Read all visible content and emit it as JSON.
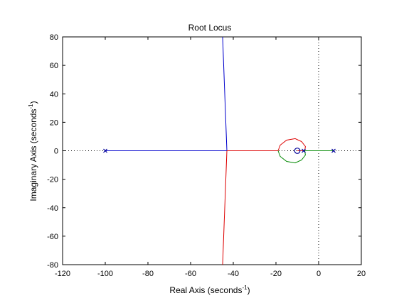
{
  "chart_data": {
    "type": "line",
    "title": "Root Locus",
    "xlabel": {
      "main": "Real Axis (seconds",
      "sup": "-1",
      "close": ")"
    },
    "ylabel": {
      "main": "Imaginary Axis (seconds",
      "sup": "-1",
      "close": ")"
    },
    "xlim": [
      -120,
      20
    ],
    "ylim": [
      -80,
      80
    ],
    "xticks": [
      -120,
      -100,
      -80,
      -60,
      -40,
      -20,
      0,
      20
    ],
    "yticks": [
      -80,
      -60,
      -40,
      -20,
      0,
      20,
      40,
      60,
      80
    ],
    "grid": false,
    "colors": {
      "blue": "#0000cc",
      "red": "#dd0000",
      "green": "#008800",
      "marker": "#000099",
      "axis": "#000000"
    },
    "series": [
      {
        "color": "blue",
        "x": [
          -100,
          -43
        ],
        "y": [
          0,
          0
        ]
      },
      {
        "color": "blue",
        "x": [
          -43,
          -44,
          -45
        ],
        "y": [
          0,
          40,
          80
        ]
      },
      {
        "color": "red",
        "x": [
          -43,
          -44,
          -45
        ],
        "y": [
          0,
          -40,
          -80
        ]
      },
      {
        "color": "red",
        "x": [
          -43,
          -19
        ],
        "y": [
          0,
          0
        ]
      },
      {
        "color": "red",
        "x": [
          -19,
          -18,
          -15,
          -11,
          -8,
          -6.2,
          -6.5
        ],
        "y": [
          0,
          4,
          7.5,
          8.5,
          6.5,
          3,
          0
        ]
      },
      {
        "color": "green",
        "x": [
          -19,
          -18,
          -15,
          -11,
          -8,
          -6.2,
          -6.5
        ],
        "y": [
          0,
          -4,
          -7.5,
          -8.5,
          -6.5,
          -3,
          0
        ]
      },
      {
        "color": "red",
        "x": [
          -10,
          -7
        ],
        "y": [
          0,
          0
        ]
      },
      {
        "color": "green",
        "x": [
          -6.5,
          7
        ],
        "y": [
          0,
          0
        ]
      }
    ],
    "poles": [
      {
        "x": -100,
        "y": 0
      },
      {
        "x": -7,
        "y": 0
      },
      {
        "x": 7,
        "y": 0
      }
    ],
    "zeros": [
      {
        "x": -10,
        "y": 0
      }
    ]
  }
}
